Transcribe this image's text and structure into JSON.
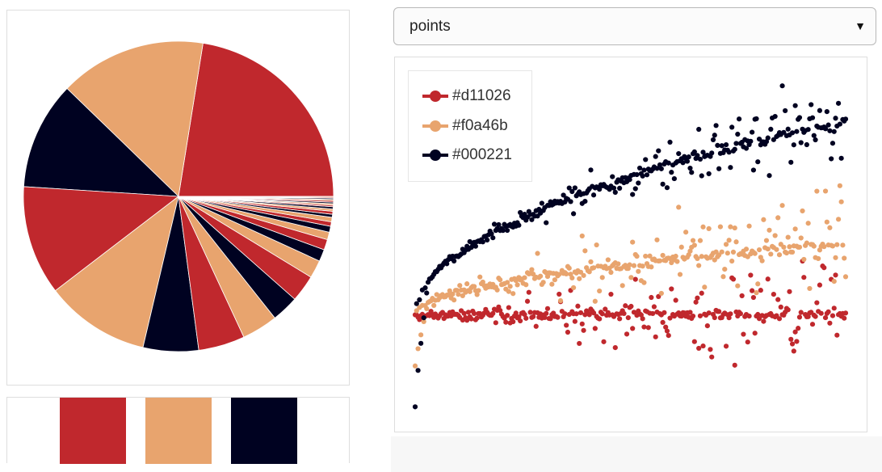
{
  "controls": {
    "mode_label": "points",
    "mode_caret": "▼"
  },
  "palette": [
    "#c0282d",
    "#e8a46e",
    "#000221"
  ],
  "legend": [
    {
      "label": "#d11026",
      "color": "#c0282d"
    },
    {
      "label": "#f0a46b",
      "color": "#e8a46e"
    },
    {
      "label": "#000221",
      "color": "#000221"
    }
  ],
  "chart_data": [
    {
      "type": "pie",
      "start_angle_deg": 0,
      "direction": "counterclockwise",
      "values": [
        144,
        98,
        72,
        73,
        70,
        37,
        31,
        24,
        18,
        18,
        12,
        8,
        7,
        5,
        4,
        3,
        3,
        2,
        2,
        1.5,
        1.5,
        1,
        1,
        1,
        1,
        0.8,
        0.8,
        0.6,
        0.6
      ],
      "colors_cycle": [
        "#c0282d",
        "#e8a46e",
        "#000221"
      ]
    },
    {
      "type": "scatter",
      "title": "",
      "xlabel": "",
      "ylabel": "",
      "xlim": [
        0,
        1
      ],
      "ylim": [
        -0.5,
        1.2
      ],
      "grid": false,
      "legend_position": "top-left",
      "points_per_series": 300,
      "series": [
        {
          "name": "#d11026",
          "color": "#c0282d",
          "trend": "flat",
          "level": 0,
          "spread": 0.3
        },
        {
          "name": "#f0a46b",
          "color": "#e8a46e",
          "trend": "sqrt",
          "level": 0.35,
          "spread": 0.35
        },
        {
          "name": "#000221",
          "color": "#000221",
          "trend": "sqrt",
          "level": 0.95,
          "spread": 0.25
        }
      ]
    }
  ]
}
